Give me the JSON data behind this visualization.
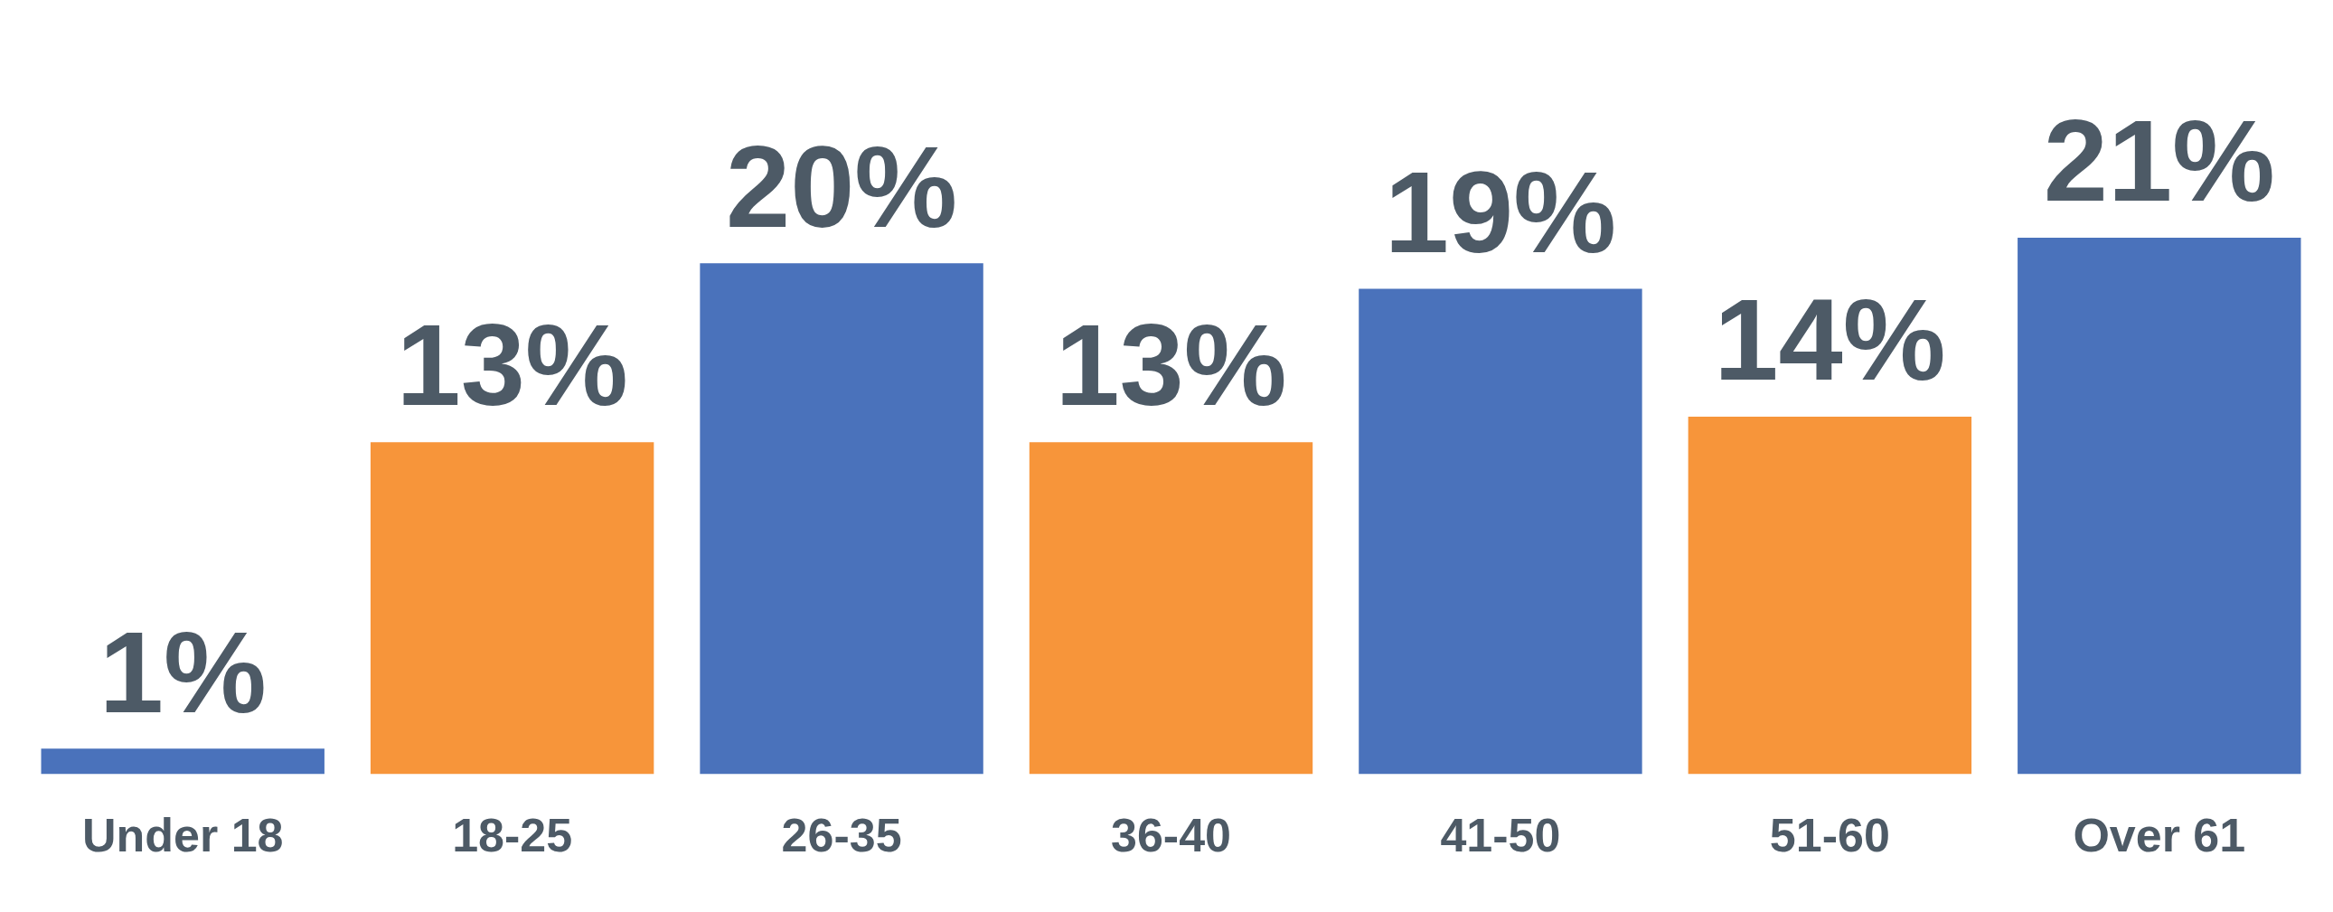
{
  "chart_data": {
    "type": "bar",
    "categories": [
      "Under 18",
      "18-25",
      "26-35",
      "36-40",
      "41-50",
      "51-60",
      "Over 61"
    ],
    "values": [
      1,
      13,
      20,
      13,
      19,
      14,
      21
    ],
    "colors": [
      "#4a72bb",
      "#f7953a",
      "#4a72bb",
      "#f7953a",
      "#4a72bb",
      "#f7953a",
      "#4a72bb"
    ],
    "value_labels": [
      "1%",
      "13%",
      "20%",
      "13%",
      "19%",
      "14%",
      "21%"
    ],
    "grid": false,
    "legend": false
  }
}
